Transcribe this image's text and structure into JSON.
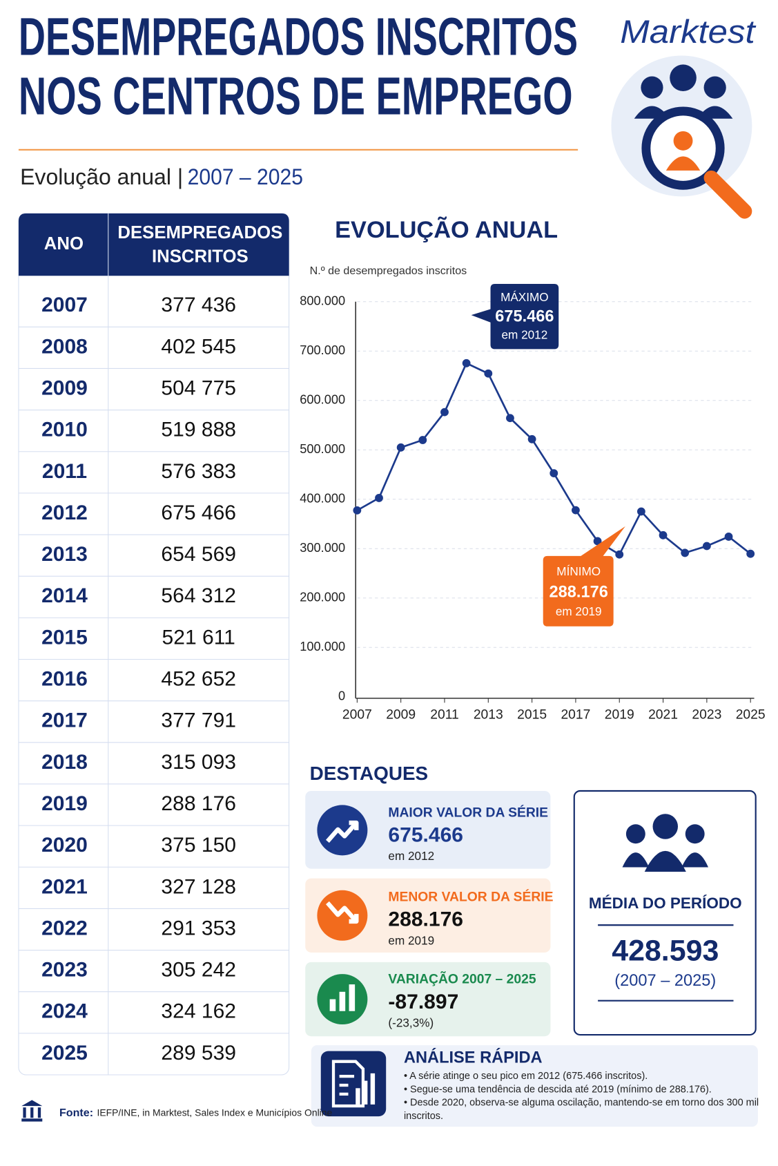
{
  "header": {
    "title_line1": "DESEMPREGADOS INSCRITOS",
    "title_line2": "NOS CENTROS DE EMPREGO",
    "subtitle_prefix": "Evolução anual |",
    "subtitle_range": "2007 – 2025",
    "brand": "Marktest"
  },
  "table": {
    "header": [
      "ANO",
      "DESEMPREGADOS INSCRITOS"
    ],
    "rows": [
      [
        "2007",
        "377 436"
      ],
      [
        "2008",
        "402 545"
      ],
      [
        "2009",
        "504 775"
      ],
      [
        "2010",
        "519 888"
      ],
      [
        "2011",
        "576 383"
      ],
      [
        "2012",
        "675 466"
      ],
      [
        "2013",
        "654 569"
      ],
      [
        "2014",
        "564 312"
      ],
      [
        "2015",
        "521 611"
      ],
      [
        "2016",
        "452 652"
      ],
      [
        "2017",
        "377 791"
      ],
      [
        "2018",
        "315 093"
      ],
      [
        "2019",
        "288 176"
      ],
      [
        "2020",
        "375 150"
      ],
      [
        "2021",
        "327 128"
      ],
      [
        "2022",
        "291 353"
      ],
      [
        "2023",
        "305 242"
      ],
      [
        "2024",
        "324 162"
      ],
      [
        "2025",
        "289 539"
      ]
    ]
  },
  "chart_data": {
    "type": "line",
    "title": "EVOLUÇÃO ANUAL",
    "y_label": "N.º de desempregados inscritos",
    "x": [
      2007,
      2008,
      2009,
      2010,
      2011,
      2012,
      2013,
      2014,
      2015,
      2016,
      2017,
      2018,
      2019,
      2020,
      2021,
      2022,
      2023,
      2024,
      2025
    ],
    "values": [
      377436,
      402545,
      504775,
      519888,
      576383,
      675466,
      654569,
      564312,
      521611,
      452652,
      377791,
      315093,
      288176,
      375150,
      327128,
      291353,
      305242,
      324162,
      289539
    ],
    "color": "#1c3a8c",
    "xlim": [
      2007,
      2025
    ],
    "xticks": [
      2007,
      2009,
      2011,
      2013,
      2015,
      2017,
      2019,
      2021,
      2023,
      2025
    ],
    "ylim": [
      0,
      800000
    ],
    "yticks": [
      0,
      {
        "value": 100000,
        "label": "100.000"
      },
      {
        "value": 200000,
        "label": "200.000"
      },
      {
        "value": 300000,
        "label": "300.000"
      },
      {
        "value": 400000,
        "label": "400.000"
      },
      {
        "value": 500000,
        "label": "500.000"
      },
      {
        "value": 600000,
        "label": "600.000"
      },
      {
        "value": 700000,
        "label": "700.000"
      },
      {
        "value": 800000,
        "label": "800.000"
      }
    ],
    "grid": true,
    "annotations": [
      {
        "label": "MÁXIMO",
        "value": "675.466",
        "note": "em 2012"
      },
      {
        "label": "MÍNIMO",
        "value": "288.176",
        "note": "em 2019"
      }
    ]
  },
  "highlights": {
    "title": "DESTAQUES",
    "cards": [
      {
        "label": "MAIOR VALOR DA SÉRIE",
        "value": "675.466",
        "note": "em 2012"
      },
      {
        "label": "MENOR VALOR DA SÉRIE",
        "value": "288.176",
        "note": "em 2019"
      },
      {
        "label": "VARIAÇÃO 2007 – 2025",
        "value": "-87.897",
        "note": "(-23,3%)"
      }
    ],
    "mean": {
      "label": "MÉDIA DO PERÍODO",
      "value": "428.593",
      "period": "(2007 – 2025)"
    }
  },
  "analysis": {
    "title": "ANÁLISE RÁPIDA",
    "lines": [
      "• A série atinge o seu pico em 2012 (675.466 inscritos).",
      "• Segue-se uma tendência de descida até 2019 (mínimo de 288.176).",
      "• Desde 2020, observa-se alguma oscilação, mantendo-se em torno dos 300 mil",
      "inscritos."
    ]
  },
  "footer": {
    "source_label": "Fonte:",
    "source": "IEFP/INE, in Marktest, Sales Index e Municípios Online"
  }
}
